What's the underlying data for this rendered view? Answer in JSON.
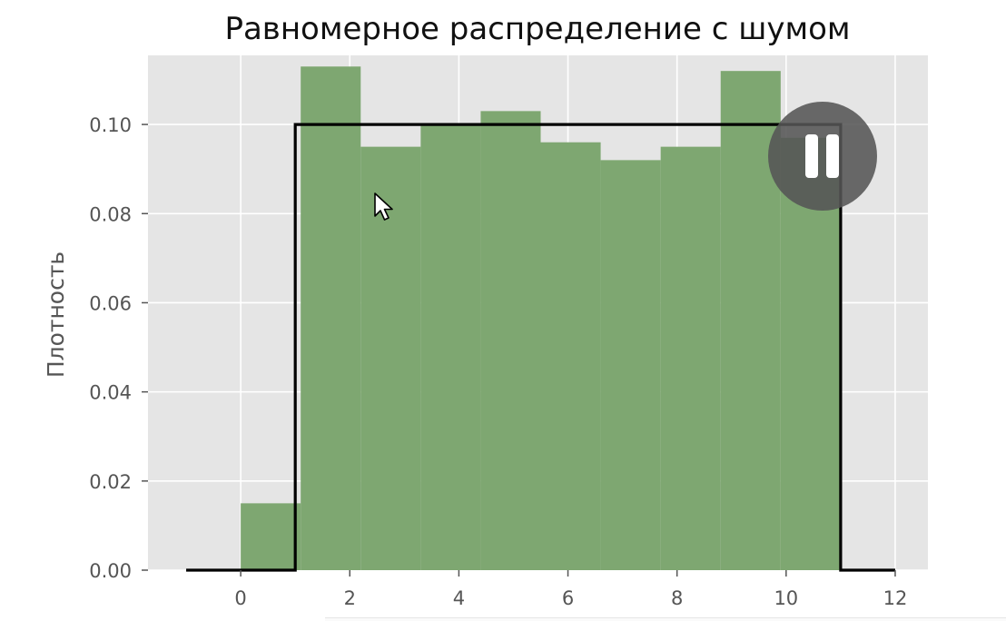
{
  "chart_data": {
    "type": "bar",
    "title": "Равномерное распределение с шумом",
    "xlabel": "",
    "ylabel": "Плотность",
    "xlim": [
      -1.7,
      12.6
    ],
    "ylim": [
      0,
      0.1155
    ],
    "xticks": [
      0,
      2,
      4,
      6,
      8,
      10,
      12
    ],
    "yticks": [
      0.0,
      0.02,
      0.04,
      0.06,
      0.08,
      0.1
    ],
    "ytick_labels": [
      "0.00",
      "0.02",
      "0.04",
      "0.06",
      "0.08",
      "0.10"
    ],
    "grid": true,
    "bins": [
      {
        "x0": 0.0,
        "x1": 1.1,
        "value": 0.015
      },
      {
        "x0": 1.1,
        "x1": 2.2,
        "value": 0.113
      },
      {
        "x0": 2.2,
        "x1": 3.3,
        "value": 0.095
      },
      {
        "x0": 3.3,
        "x1": 4.4,
        "value": 0.1
      },
      {
        "x0": 4.4,
        "x1": 5.5,
        "value": 0.103
      },
      {
        "x0": 5.5,
        "x1": 6.6,
        "value": 0.096
      },
      {
        "x0": 6.6,
        "x1": 7.7,
        "value": 0.092
      },
      {
        "x0": 7.7,
        "x1": 8.8,
        "value": 0.095
      },
      {
        "x0": 8.8,
        "x1": 9.9,
        "value": 0.112
      },
      {
        "x0": 9.9,
        "x1": 11.0,
        "value": 0.097
      }
    ],
    "line": {
      "x": [
        -1,
        1,
        1,
        11,
        11,
        12
      ],
      "y": [
        0,
        0,
        0.1,
        0.1,
        0,
        0
      ]
    },
    "colors": {
      "bars": "#7ea771",
      "line": "#000000",
      "background": "#e5e5e5",
      "grid": "#ffffff"
    }
  },
  "player": {
    "state": "playing",
    "pause_icon": "pause-icon"
  }
}
